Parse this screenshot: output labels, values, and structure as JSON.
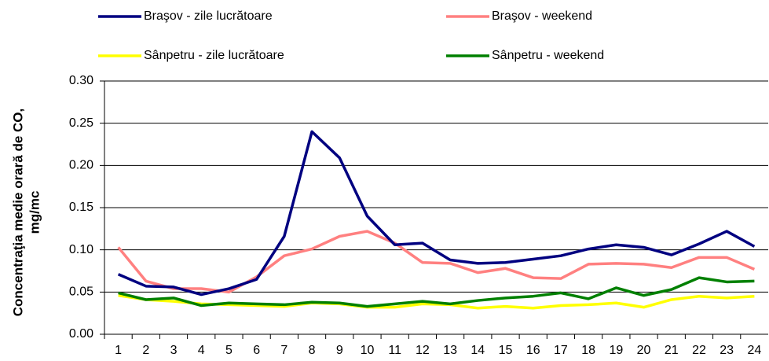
{
  "chart_data": {
    "type": "line",
    "ylabel": [
      "Concentraţia medie orară de CO,",
      "mg/mc"
    ],
    "categories": [
      "1",
      "2",
      "3",
      "4",
      "5",
      "6",
      "7",
      "8",
      "9",
      "10",
      "11",
      "12",
      "13",
      "14",
      "15",
      "16",
      "17",
      "18",
      "19",
      "20",
      "21",
      "22",
      "23",
      "24"
    ],
    "series": [
      {
        "name": "Braşov - zile lucrătoare",
        "color": "#000080",
        "values": [
          0.071,
          0.057,
          0.056,
          0.047,
          0.054,
          0.065,
          0.116,
          0.24,
          0.209,
          0.14,
          0.106,
          0.108,
          0.088,
          0.084,
          0.085,
          0.089,
          0.093,
          0.101,
          0.106,
          0.103,
          0.094,
          0.107,
          0.122,
          0.104
        ]
      },
      {
        "name": "Braşov - weekend",
        "color": "#ff8080",
        "values": [
          0.103,
          0.063,
          0.054,
          0.054,
          0.05,
          0.068,
          0.093,
          0.101,
          0.116,
          0.122,
          0.108,
          0.085,
          0.084,
          0.073,
          0.078,
          0.067,
          0.066,
          0.083,
          0.084,
          0.083,
          0.079,
          0.091,
          0.091,
          0.077
        ]
      },
      {
        "name": "Sânpetru - zile lucrătoare",
        "color": "#ffff00",
        "values": [
          0.046,
          0.041,
          0.039,
          0.036,
          0.035,
          0.034,
          0.033,
          0.037,
          0.036,
          0.032,
          0.032,
          0.036,
          0.035,
          0.031,
          0.033,
          0.031,
          0.034,
          0.035,
          0.037,
          0.032,
          0.041,
          0.045,
          0.043,
          0.045
        ]
      },
      {
        "name": "Sânpetru - weekend",
        "color": "#008000",
        "values": [
          0.049,
          0.041,
          0.043,
          0.034,
          0.037,
          0.036,
          0.035,
          0.038,
          0.037,
          0.033,
          0.036,
          0.039,
          0.036,
          0.04,
          0.043,
          0.045,
          0.049,
          0.042,
          0.055,
          0.046,
          0.053,
          0.067,
          0.062,
          0.063
        ]
      }
    ],
    "ylim": [
      0,
      0.3
    ],
    "yticks": [
      {
        "value": 0,
        "label": "0.00"
      },
      0.05,
      {
        "value": 0.1,
        "label": "0.10"
      },
      0.15,
      {
        "value": 0.2,
        "label": "0.20"
      },
      0.25,
      {
        "value": 0.3,
        "label": "0.30"
      }
    ],
    "grid": true
  }
}
